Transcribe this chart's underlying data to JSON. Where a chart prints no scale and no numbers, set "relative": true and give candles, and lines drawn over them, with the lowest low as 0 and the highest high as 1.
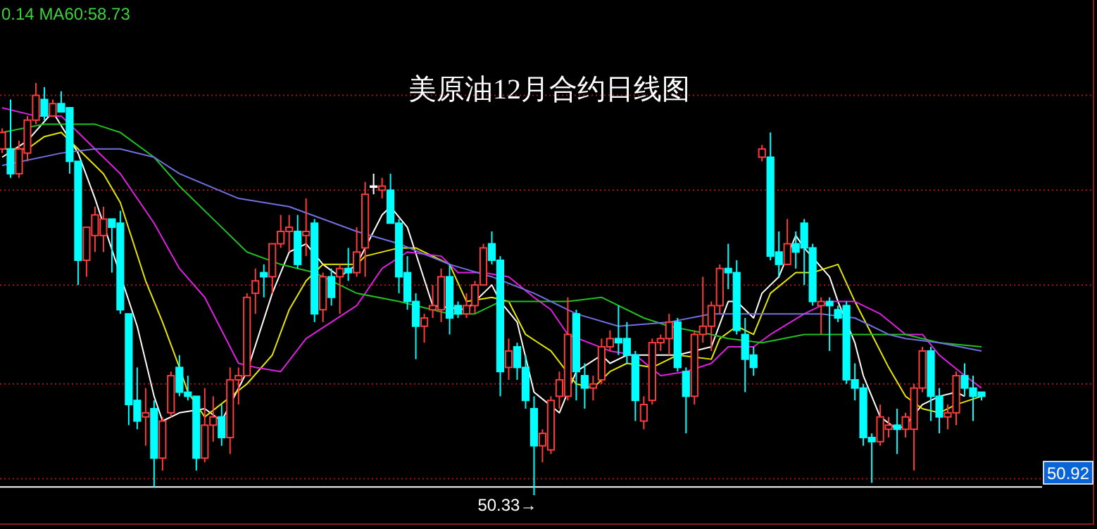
{
  "chart_data": {
    "type": "candlestick",
    "title": "美原油12月合约日线图",
    "relative": true,
    "categories": [
      null,
      null,
      null,
      null,
      null,
      null,
      null,
      null,
      null,
      null,
      null,
      null,
      null,
      null,
      null,
      null,
      null,
      null,
      null,
      null,
      null,
      null,
      null,
      null,
      null,
      null,
      null,
      null,
      null,
      null,
      null,
      null,
      null,
      null,
      null,
      null,
      null,
      null,
      null,
      null,
      null,
      null,
      null,
      null,
      null,
      null,
      null,
      null,
      null,
      null,
      null,
      null,
      null,
      null,
      null,
      null,
      null,
      null,
      null,
      null,
      null,
      null,
      null,
      null,
      null,
      null,
      null,
      null,
      null,
      null,
      null,
      null,
      null,
      null,
      null,
      null,
      null,
      null,
      null,
      null,
      null,
      null,
      null,
      null,
      null,
      null,
      null,
      null,
      null,
      null,
      null,
      null,
      null,
      null,
      null,
      null,
      null,
      null,
      null,
      null,
      null,
      null,
      null,
      null,
      null,
      null,
      null,
      null,
      null,
      null,
      null,
      null,
      null,
      null,
      null,
      null,
      null
    ],
    "ohlc": [
      [
        0.84,
        0.89,
        0.83,
        0.88
      ],
      [
        0.84,
        0.96,
        0.77,
        0.78
      ],
      [
        0.78,
        0.86,
        0.77,
        0.84
      ],
      [
        0.83,
        0.92,
        0.81,
        0.91
      ],
      [
        0.91,
        1.0,
        0.9,
        0.97
      ],
      [
        0.96,
        0.99,
        0.91,
        0.92
      ],
      [
        0.92,
        0.96,
        0.92,
        0.95
      ],
      [
        0.95,
        0.98,
        0.93,
        0.93
      ],
      [
        0.94,
        0.94,
        0.78,
        0.81
      ],
      [
        0.81,
        0.81,
        0.51,
        0.57
      ],
      [
        0.57,
        0.65,
        0.53,
        0.65
      ],
      [
        0.63,
        0.7,
        0.59,
        0.68
      ],
      [
        0.63,
        0.7,
        0.59,
        0.67
      ],
      [
        0.67,
        0.67,
        0.54,
        0.65
      ],
      [
        0.66,
        0.69,
        0.44,
        0.45
      ],
      [
        0.44,
        0.44,
        0.17,
        0.22
      ],
      [
        0.23,
        0.31,
        0.16,
        0.18
      ],
      [
        0.19,
        0.26,
        0.12,
        0.2
      ],
      [
        0.21,
        0.23,
        0.02,
        0.09
      ],
      [
        0.09,
        0.19,
        0.06,
        0.18
      ],
      [
        0.2,
        0.3,
        0.19,
        0.29
      ],
      [
        0.31,
        0.34,
        0.24,
        0.25
      ],
      [
        0.25,
        0.29,
        0.23,
        0.24
      ],
      [
        0.24,
        0.24,
        0.06,
        0.09
      ],
      [
        0.09,
        0.26,
        0.08,
        0.17
      ],
      [
        0.17,
        0.24,
        0.13,
        0.19
      ],
      [
        0.19,
        0.22,
        0.12,
        0.14
      ],
      [
        0.14,
        0.31,
        0.1,
        0.28
      ],
      [
        0.28,
        0.31,
        0.22,
        0.29
      ],
      [
        0.29,
        0.49,
        0.29,
        0.48
      ],
      [
        0.49,
        0.55,
        0.44,
        0.52
      ],
      [
        0.54,
        0.56,
        0.48,
        0.53
      ],
      [
        0.53,
        0.61,
        0.49,
        0.61
      ],
      [
        0.61,
        0.68,
        0.6,
        0.64
      ],
      [
        0.64,
        0.68,
        0.59,
        0.65
      ],
      [
        0.64,
        0.68,
        0.55,
        0.56
      ],
      [
        0.63,
        0.72,
        0.58,
        0.64
      ],
      [
        0.66,
        0.67,
        0.42,
        0.44
      ],
      [
        0.45,
        0.54,
        0.42,
        0.53
      ],
      [
        0.53,
        0.55,
        0.46,
        0.48
      ],
      [
        0.53,
        0.56,
        0.44,
        0.55
      ],
      [
        0.55,
        0.6,
        0.52,
        0.54
      ],
      [
        0.54,
        0.65,
        0.53,
        0.59
      ],
      [
        0.6,
        0.76,
        0.53,
        0.73
      ],
      [
        0.75,
        0.78,
        0.73,
        0.75
      ],
      [
        0.74,
        0.77,
        0.72,
        0.75
      ],
      [
        0.74,
        0.78,
        0.66,
        0.66
      ],
      [
        0.66,
        0.67,
        0.49,
        0.53
      ],
      [
        0.54,
        0.58,
        0.45,
        0.47
      ],
      [
        0.47,
        0.49,
        0.33,
        0.41
      ],
      [
        0.41,
        0.44,
        0.37,
        0.43
      ],
      [
        0.45,
        0.51,
        0.43,
        0.46
      ],
      [
        0.45,
        0.55,
        0.42,
        0.53
      ],
      [
        0.53,
        0.56,
        0.39,
        0.43
      ],
      [
        0.46,
        0.47,
        0.43,
        0.44
      ],
      [
        0.44,
        0.49,
        0.43,
        0.46
      ],
      [
        0.46,
        0.52,
        0.44,
        0.51
      ],
      [
        0.51,
        0.61,
        0.51,
        0.6
      ],
      [
        0.61,
        0.64,
        0.56,
        0.57
      ],
      [
        0.57,
        0.58,
        0.24,
        0.3
      ],
      [
        0.31,
        0.38,
        0.28,
        0.35
      ],
      [
        0.36,
        0.37,
        0.28,
        0.31
      ],
      [
        0.31,
        0.34,
        0.21,
        0.23
      ],
      [
        0.21,
        0.24,
        0.0,
        0.12
      ],
      [
        0.12,
        0.16,
        0.08,
        0.15
      ],
      [
        0.11,
        0.24,
        0.1,
        0.23
      ],
      [
        0.24,
        0.3,
        0.21,
        0.28
      ],
      [
        0.24,
        0.48,
        0.23,
        0.39
      ],
      [
        0.44,
        0.45,
        0.23,
        0.3
      ],
      [
        0.29,
        0.32,
        0.21,
        0.26
      ],
      [
        0.26,
        0.29,
        0.23,
        0.27
      ],
      [
        0.28,
        0.38,
        0.27,
        0.36
      ],
      [
        0.36,
        0.4,
        0.35,
        0.38
      ],
      [
        0.38,
        0.46,
        0.34,
        0.37
      ],
      [
        0.38,
        0.42,
        0.32,
        0.34
      ],
      [
        0.34,
        0.35,
        0.18,
        0.23
      ],
      [
        0.18,
        0.24,
        0.16,
        0.22
      ],
      [
        0.23,
        0.38,
        0.22,
        0.37
      ],
      [
        0.37,
        0.39,
        0.35,
        0.38
      ],
      [
        0.38,
        0.44,
        0.34,
        0.42
      ],
      [
        0.42,
        0.43,
        0.3,
        0.31
      ],
      [
        0.3,
        0.31,
        0.15,
        0.24
      ],
      [
        0.24,
        0.4,
        0.22,
        0.39
      ],
      [
        0.39,
        0.53,
        0.37,
        0.41
      ],
      [
        0.41,
        0.47,
        0.35,
        0.46
      ],
      [
        0.46,
        0.56,
        0.44,
        0.55
      ],
      [
        0.55,
        0.61,
        0.5,
        0.54
      ],
      [
        0.54,
        0.57,
        0.39,
        0.4
      ],
      [
        0.39,
        0.43,
        0.25,
        0.33
      ],
      [
        0.34,
        0.36,
        0.29,
        0.31
      ],
      [
        0.82,
        0.85,
        0.81,
        0.84
      ],
      [
        0.82,
        0.88,
        0.57,
        0.58
      ],
      [
        0.59,
        0.64,
        0.53,
        0.56
      ],
      [
        0.56,
        0.67,
        0.56,
        0.61
      ],
      [
        0.61,
        0.64,
        0.55,
        0.59
      ],
      [
        0.66,
        0.67,
        0.51,
        0.6
      ],
      [
        0.6,
        0.61,
        0.46,
        0.47
      ],
      [
        0.46,
        0.48,
        0.39,
        0.47
      ],
      [
        0.47,
        0.48,
        0.35,
        0.46
      ],
      [
        0.45,
        0.46,
        0.42,
        0.43
      ],
      [
        0.46,
        0.47,
        0.27,
        0.28
      ],
      [
        0.28,
        0.32,
        0.23,
        0.26
      ],
      [
        0.26,
        0.27,
        0.12,
        0.14
      ],
      [
        0.14,
        0.15,
        0.03,
        0.13
      ],
      [
        0.13,
        0.22,
        0.12,
        0.19
      ],
      [
        0.16,
        0.19,
        0.14,
        0.17
      ],
      [
        0.17,
        0.21,
        0.1,
        0.16
      ],
      [
        0.16,
        0.2,
        0.14,
        0.19
      ],
      [
        0.16,
        0.27,
        0.06,
        0.26
      ],
      [
        0.26,
        0.36,
        0.25,
        0.35
      ],
      [
        0.35,
        0.36,
        0.18,
        0.24
      ],
      [
        0.24,
        0.26,
        0.15,
        0.19
      ],
      [
        0.19,
        0.22,
        0.16,
        0.2
      ],
      [
        0.2,
        0.3,
        0.17,
        0.29
      ],
      [
        0.29,
        0.32,
        0.24,
        0.26
      ],
      [
        0.26,
        0.29,
        0.18,
        0.24
      ],
      [
        0.25,
        0.25,
        0.23,
        0.24
      ]
    ],
    "colors": [
      "#ff3c3c",
      "#00ffff",
      "#ff3c3c",
      "#ff3c3c",
      "#ff3c3c",
      "#00ffff",
      "#ff3c3c",
      "#00ffff",
      "#00ffff",
      "#00ffff",
      "#ff3c3c",
      "#ff3c3c",
      "#ff3c3c",
      "#00ffff",
      "#00ffff",
      "#00ffff",
      "#00ffff",
      "#ff3c3c",
      "#00ffff",
      "#ff3c3c",
      "#ff3c3c",
      "#00ffff",
      "#00ffff",
      "#00ffff",
      "#ff3c3c",
      "#ff3c3c",
      "#00ffff",
      "#ff3c3c",
      "#ff3c3c",
      "#ff3c3c",
      "#ff3c3c",
      "#00ffff",
      "#ff3c3c",
      "#ff3c3c",
      "#ff3c3c",
      "#00ffff",
      "#ff3c3c",
      "#00ffff",
      "#ff3c3c",
      "#00ffff",
      "#ff3c3c",
      "#00ffff",
      "#ff3c3c",
      "#ff3c3c",
      "#ffffff",
      "#ff3c3c",
      "#00ffff",
      "#00ffff",
      "#00ffff",
      "#00ffff",
      "#ff3c3c",
      "#ff3c3c",
      "#ff3c3c",
      "#00ffff",
      "#00ffff",
      "#ff3c3c",
      "#ff3c3c",
      "#ff3c3c",
      "#00ffff",
      "#00ffff",
      "#ff3c3c",
      "#00ffff",
      "#00ffff",
      "#00ffff",
      "#ff3c3c",
      "#ff3c3c",
      "#ff3c3c",
      "#ff3c3c",
      "#00ffff",
      "#00ffff",
      "#ff3c3c",
      "#ff3c3c",
      "#ff3c3c",
      "#00ffff",
      "#00ffff",
      "#00ffff",
      "#ff3c3c",
      "#ff3c3c",
      "#ff3c3c",
      "#ff3c3c",
      "#00ffff",
      "#00ffff",
      "#ff3c3c",
      "#ff3c3c",
      "#ff3c3c",
      "#ff3c3c",
      "#00ffff",
      "#00ffff",
      "#00ffff",
      "#00ffff",
      "#ff3c3c",
      "#00ffff",
      "#00ffff",
      "#ff3c3c",
      "#00ffff",
      "#00ffff",
      "#00ffff",
      "#ff3c3c",
      "#00ffff",
      "#00ffff",
      "#00ffff",
      "#00ffff",
      "#00ffff",
      "#00ffff",
      "#ff3c3c",
      "#ff3c3c",
      "#00ffff",
      "#ff3c3c",
      "#ff3c3c",
      "#ff3c3c",
      "#00ffff",
      "#00ffff",
      "#ff3c3c",
      "#ff3c3c",
      "#00ffff",
      "#00ffff",
      "#00ffff"
    ],
    "series": [
      {
        "type": "line",
        "color": "#ffffff",
        "values": [
          0.82,
          null,
          null,
          0.86,
          null,
          null,
          0.93,
          null,
          null,
          0.83,
          null,
          0.72,
          null,
          null,
          null,
          null,
          0.41,
          null,
          0.24,
          0.18,
          null,
          0.2,
          null,
          null,
          0.21,
          null,
          0.18,
          null,
          null,
          0.3,
          null,
          null,
          0.49,
          null,
          0.59,
          null,
          0.61,
          null,
          0.56,
          null,
          0.53,
          null,
          0.56,
          null,
          null,
          0.68,
          0.7,
          null,
          0.65,
          null,
          null,
          0.46,
          null,
          null,
          null,
          0.45,
          0.47,
          null,
          0.51,
          0.47,
          null,
          0.42,
          null,
          0.25,
          null,
          null,
          0.2,
          null,
          0.3,
          null,
          null,
          0.34,
          0.32,
          null,
          0.34,
          null,
          null,
          null,
          null,
          null,
          0.34,
          null,
          null,
          null,
          0.36,
          null,
          0.47,
          0.47,
          null,
          0.43,
          0.49,
          null,
          0.53,
          null,
          0.63,
          0.6,
          null,
          null,
          0.53,
          0.47,
          null,
          0.37,
          0.29,
          null,
          0.19,
          null,
          0.16,
          0.17,
          null,
          0.22,
          null,
          0.24,
          null,
          0.25,
          0.24,
          null,
          null
        ]
      },
      {
        "type": "line",
        "color": "#e6e600",
        "values": [
          0.84,
          null,
          null,
          0.84,
          null,
          0.87,
          null,
          0.88,
          null,
          0.84,
          null,
          null,
          0.78,
          null,
          0.71,
          null,
          null,
          0.52,
          null,
          0.42,
          null,
          0.31,
          0.25,
          null,
          0.19,
          null,
          null,
          null,
          null,
          0.27,
          null,
          null,
          0.34,
          null,
          0.45,
          null,
          0.52,
          null,
          0.56,
          null,
          null,
          null,
          0.56,
          0.58,
          null,
          null,
          null,
          0.6,
          null,
          0.6,
          null,
          0.58,
          null,
          0.56,
          null,
          0.47,
          null,
          null,
          0.48,
          null,
          0.47,
          null,
          0.39,
          null,
          null,
          0.35,
          null,
          null,
          0.27,
          null,
          0.26,
          null,
          0.3,
          null,
          0.32,
          null,
          null,
          0.31,
          null,
          null,
          0.34,
          null,
          null,
          null,
          0.33,
          0.38,
          null,
          0.41,
          null,
          0.39,
          null,
          0.49,
          null,
          null,
          0.54,
          null,
          0.54,
          null,
          null,
          0.56,
          null,
          0.47,
          null,
          null,
          null,
          0.31,
          null,
          0.24,
          null,
          0.21,
          null,
          0.2,
          null,
          0.22,
          null,
          null,
          0.24
        ]
      },
      {
        "type": "line",
        "color": "#e020e0",
        "values": [
          0.94,
          null,
          null,
          null,
          0.92,
          null,
          null,
          0.92,
          null,
          0.88,
          null,
          null,
          null,
          null,
          0.78,
          null,
          null,
          null,
          0.66,
          null,
          null,
          0.55,
          null,
          null,
          0.48,
          null,
          null,
          null,
          0.32,
          null,
          0.31,
          null,
          null,
          0.3,
          null,
          null,
          0.38,
          null,
          null,
          0.42,
          null,
          null,
          0.46,
          null,
          null,
          0.55,
          null,
          null,
          0.59,
          null,
          null,
          null,
          0.58,
          null,
          0.54,
          null,
          null,
          0.54,
          null,
          null,
          0.53,
          null,
          null,
          0.48,
          null,
          0.45,
          null,
          0.39,
          null,
          null,
          null,
          null,
          0.35,
          null,
          null,
          0.34,
          null,
          null,
          0.29,
          null,
          null,
          0.3,
          null,
          null,
          0.32,
          null,
          0.36,
          null,
          null,
          0.36,
          null,
          0.39,
          null,
          null,
          null,
          0.44,
          null,
          null,
          0.47,
          null,
          null,
          0.47,
          null,
          null,
          0.44,
          null,
          null,
          0.39,
          null,
          0.39,
          null,
          0.34,
          null,
          null,
          0.29,
          null,
          0.26
        ]
      },
      {
        "type": "line",
        "color": "#20c020",
        "values": [
          0.88,
          null,
          null,
          null,
          null,
          0.9,
          null,
          null,
          null,
          null,
          null,
          0.9,
          null,
          null,
          0.88,
          null,
          null,
          null,
          0.82,
          null,
          null,
          0.75,
          null,
          null,
          null,
          0.67,
          null,
          null,
          null,
          0.59,
          null,
          null,
          null,
          0.56,
          null,
          null,
          null,
          0.54,
          null,
          null,
          null,
          null,
          0.49,
          null,
          null,
          null,
          null,
          0.47,
          null,
          null,
          null,
          null,
          null,
          0.44,
          null,
          null,
          0.44,
          null,
          null,
          0.47,
          null,
          null,
          null,
          0.47,
          null,
          null,
          null,
          0.47,
          null,
          null,
          null,
          0.48,
          null,
          null,
          null,
          null,
          0.43,
          null,
          null,
          0.41,
          null,
          null,
          null,
          null,
          0.39,
          null,
          0.38,
          null,
          null,
          null,
          0.37,
          null,
          null,
          null,
          null,
          0.39,
          null,
          null,
          null,
          null,
          0.39,
          null,
          null,
          null,
          null,
          0.39,
          null,
          0.39,
          null,
          null,
          null,
          0.37,
          null,
          null,
          null,
          null,
          0.36
        ]
      },
      {
        "type": "line",
        "color": "#7070e0",
        "values": [
          0.8,
          null,
          null,
          null,
          null,
          null,
          null,
          0.83,
          null,
          null,
          null,
          0.84,
          null,
          null,
          0.84,
          null,
          null,
          null,
          0.82,
          null,
          null,
          0.78,
          null,
          null,
          null,
          null,
          null,
          null,
          0.72,
          null,
          null,
          null,
          null,
          null,
          0.7,
          null,
          null,
          null,
          null,
          null,
          null,
          null,
          0.64,
          null,
          null,
          null,
          null,
          0.61,
          null,
          null,
          null,
          null,
          null,
          0.56,
          null,
          null,
          null,
          null,
          0.53,
          null,
          null,
          null,
          null,
          0.49,
          null,
          null,
          null,
          null,
          0.44,
          null,
          null,
          null,
          null,
          0.41,
          null,
          null,
          null,
          null,
          null,
          0.42,
          null,
          null,
          null,
          null,
          0.44,
          null,
          0.44,
          null,
          null,
          null,
          null,
          0.44,
          null,
          null,
          null,
          null,
          null,
          0.44,
          null,
          null,
          null,
          0.43,
          null,
          null,
          null,
          0.39,
          null,
          0.38,
          null,
          null,
          null,
          0.37,
          null,
          null,
          null,
          null,
          0.35
        ]
      }
    ],
    "ref_lines": [
      {
        "axis": "y",
        "value": 0.97,
        "color": "#a01818",
        "line_style": "dotted"
      },
      {
        "axis": "y",
        "value": 0.74,
        "color": "#a01818",
        "line_style": "dotted"
      },
      {
        "axis": "y",
        "value": 0.51,
        "color": "#a01818",
        "line_style": "dotted"
      },
      {
        "axis": "y",
        "value": 0.27,
        "color": "#a01818",
        "line_style": "dotted"
      },
      {
        "axis": "y",
        "value": 0.04,
        "color": "#a01818",
        "line_style": "dotted"
      },
      {
        "axis": "y",
        "value": 0.02,
        "color": "#ffffff",
        "line_style": "solid"
      }
    ],
    "annotations": [
      "0.14 MA60:58.73",
      "50.33→",
      "50.92"
    ]
  }
}
